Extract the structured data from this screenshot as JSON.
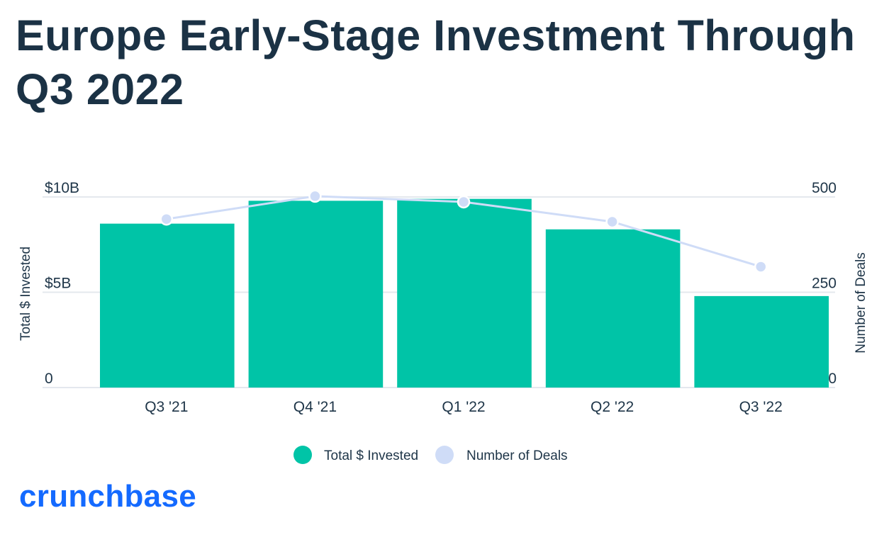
{
  "title": "Europe Early-Stage Investment Through Q3 2022",
  "logo_text": "crunchbase",
  "colors": {
    "bar": "#00c4a7",
    "line": "#cfdcf7",
    "marker_stroke": "#ffffff",
    "grid": "#e4e8ee",
    "title": "#1b3245",
    "logo": "#146aff"
  },
  "chart_data": {
    "type": "bar",
    "categories": [
      "Q3 '21",
      "Q4 '21",
      "Q1 '22",
      "Q2 '22",
      "Q3 '22"
    ],
    "series": [
      {
        "name": "Total $ Invested",
        "kind": "bar",
        "axis": "left",
        "values": [
          8.6,
          9.8,
          9.9,
          8.3,
          4.8
        ]
      },
      {
        "name": "Number of Deals",
        "kind": "line",
        "axis": "right",
        "values": [
          442,
          502,
          487,
          435,
          317
        ]
      }
    ],
    "y_left": {
      "label": "Total $ Invested",
      "range": [
        0,
        10
      ],
      "ticks": [
        {
          "value": 0,
          "label": "0"
        },
        {
          "value": 5,
          "label": "$5B"
        },
        {
          "value": 10,
          "label": "$10B"
        }
      ]
    },
    "y_right": {
      "label": "Number of Deals",
      "range": [
        0,
        500
      ],
      "ticks": [
        {
          "value": 0,
          "label": "0"
        },
        {
          "value": 250,
          "label": "250"
        },
        {
          "value": 500,
          "label": "500"
        }
      ]
    },
    "legend": {
      "position": "bottom",
      "items": [
        "Total $ Invested",
        "Number of Deals"
      ]
    },
    "grid": true
  }
}
